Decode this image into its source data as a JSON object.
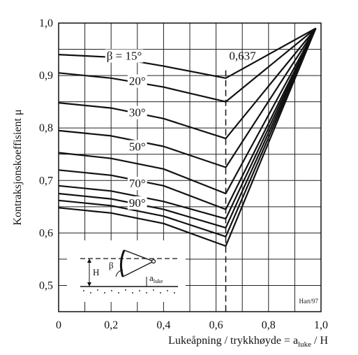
{
  "chart_data": {
    "type": "line",
    "xlabel": "Lukeåpning / trykkhøyde = a",
    "xlabel_sub": "luke",
    "xlabel_tail": " / H",
    "ylabel": "Kontraksjonskoeffisient  μ",
    "xlim": [
      0,
      1.0
    ],
    "ylim": [
      0.45,
      1.0
    ],
    "x_ticks": [
      "0",
      "0,2",
      "0,4",
      "0,6",
      "0,8",
      "1,0"
    ],
    "y_ticks": [
      "0,5",
      "0,6",
      "0,7",
      "0,8",
      "0,9",
      "1,0"
    ],
    "grid": true,
    "annotation_value": "0,637",
    "vertical_marker_x": 0.637,
    "credit": "Hart/97",
    "inset": {
      "H": "H",
      "beta": "β",
      "a": "a",
      "a_sub": "luke"
    },
    "series": [
      {
        "name": "β = 15°",
        "points": [
          [
            0,
            0.94
          ],
          [
            0.2,
            0.935
          ],
          [
            0.4,
            0.918
          ],
          [
            0.637,
            0.895
          ],
          [
            0.98,
            0.99
          ]
        ]
      },
      {
        "name": "20°",
        "points": [
          [
            0,
            0.905
          ],
          [
            0.2,
            0.895
          ],
          [
            0.4,
            0.878
          ],
          [
            0.637,
            0.85
          ],
          [
            0.98,
            0.99
          ]
        ]
      },
      {
        "name": null,
        "points": [
          [
            0,
            0.848
          ],
          [
            0.2,
            0.838
          ],
          [
            0.4,
            0.818
          ],
          [
            0.637,
            0.78
          ],
          [
            0.98,
            0.99
          ]
        ]
      },
      {
        "name": "30°",
        "points": [
          [
            0,
            0.795
          ],
          [
            0.2,
            0.785
          ],
          [
            0.4,
            0.765
          ],
          [
            0.637,
            0.725
          ],
          [
            0.98,
            0.99
          ]
        ]
      },
      {
        "name": null,
        "points": [
          [
            0,
            0.753
          ],
          [
            0.2,
            0.742
          ],
          [
            0.4,
            0.722
          ],
          [
            0.637,
            0.675
          ],
          [
            0.98,
            0.99
          ]
        ]
      },
      {
        "name": "50°",
        "points": [
          [
            0,
            0.72
          ],
          [
            0.2,
            0.71
          ],
          [
            0.4,
            0.69
          ],
          [
            0.637,
            0.645
          ],
          [
            0.98,
            0.99
          ]
        ]
      },
      {
        "name": null,
        "points": [
          [
            0,
            0.69
          ],
          [
            0.2,
            0.68
          ],
          [
            0.4,
            0.66
          ],
          [
            0.637,
            0.627
          ],
          [
            0.98,
            0.99
          ]
        ]
      },
      {
        "name": "70°",
        "points": [
          [
            0,
            0.675
          ],
          [
            0.2,
            0.665
          ],
          [
            0.4,
            0.645
          ],
          [
            0.637,
            0.61
          ],
          [
            0.98,
            0.99
          ]
        ]
      },
      {
        "name": null,
        "points": [
          [
            0,
            0.662
          ],
          [
            0.2,
            0.652
          ],
          [
            0.4,
            0.632
          ],
          [
            0.637,
            0.593
          ],
          [
            0.98,
            0.99
          ]
        ]
      },
      {
        "name": "90°",
        "points": [
          [
            0,
            0.648
          ],
          [
            0.2,
            0.638
          ],
          [
            0.4,
            0.618
          ],
          [
            0.637,
            0.575
          ],
          [
            0.98,
            0.99
          ]
        ]
      }
    ]
  }
}
